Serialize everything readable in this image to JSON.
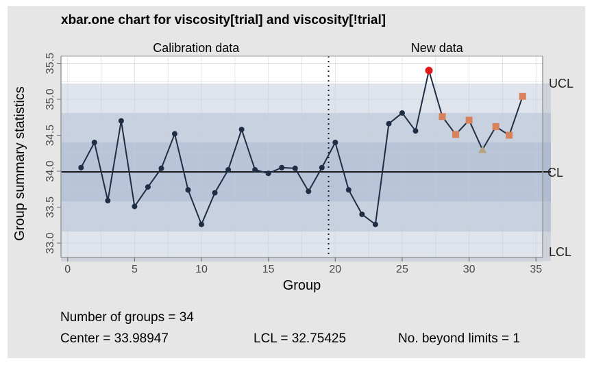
{
  "chart_data": {
    "type": "line",
    "title": "xbar.one chart for viscosity[trial] and viscosity[!trial]",
    "xlabel": "Group",
    "ylabel": "Group summary statistics",
    "section_labels": [
      "Calibration data",
      "New data"
    ],
    "xlim": [
      -0.5,
      35.5
    ],
    "ylim": [
      32.8,
      35.6
    ],
    "x_ticks": [
      0,
      5,
      10,
      15,
      20,
      25,
      30,
      35
    ],
    "y_ticks": [
      33.0,
      33.5,
      34.0,
      34.5,
      35.0,
      35.5
    ],
    "grid": true,
    "separator_x": 19.5,
    "center": 33.99,
    "ucl": 35.22,
    "lcl": 32.75,
    "bands": [
      {
        "lower": 32.75,
        "upper": 35.22
      },
      {
        "lower": 33.16,
        "upper": 34.81
      },
      {
        "lower": 33.58,
        "upper": 34.4
      }
    ],
    "limit_labels": {
      "ucl": "UCL",
      "cl": "CL",
      "lcl": "LCL"
    },
    "series": [
      {
        "x": [
          1,
          2,
          3,
          4,
          5,
          6,
          7,
          8,
          9,
          10,
          11,
          12,
          13,
          14,
          15,
          16,
          17,
          18,
          19,
          20,
          21,
          22,
          23,
          24,
          25,
          26,
          27,
          28,
          29,
          30,
          31,
          32,
          33,
          34
        ],
        "values": [
          34.05,
          34.4,
          33.59,
          34.7,
          33.51,
          33.78,
          34.04,
          34.52,
          33.74,
          33.26,
          33.7,
          34.02,
          34.58,
          34.02,
          33.97,
          34.05,
          34.04,
          33.72,
          34.05,
          34.4,
          33.74,
          33.4,
          33.26,
          34.66,
          34.81,
          34.56,
          35.4,
          34.76,
          34.51,
          34.71,
          34.3,
          34.62,
          34.5,
          35.04
        ],
        "markers": [
          "circle",
          "circle",
          "circle",
          "circle",
          "circle",
          "circle",
          "circle",
          "circle",
          "circle",
          "circle",
          "circle",
          "circle",
          "circle",
          "circle",
          "circle",
          "circle",
          "circle",
          "circle",
          "circle",
          "circle",
          "circle",
          "circle",
          "circle",
          "circle",
          "circle",
          "circle",
          "circle-beyond",
          "square-run",
          "square-run",
          "square-run",
          "triangle-run",
          "square-run",
          "square-run",
          "square-run"
        ]
      }
    ],
    "colors": {
      "line": "#1f2d44",
      "point": "#1f2d44",
      "beyond": "#e31a1c",
      "run": "#d8825c",
      "trend": "#b7a17e",
      "band": "#94a6c4",
      "panel": "#ffffff",
      "frame": "#e6e6e6"
    }
  },
  "stats": {
    "groups": "Number of groups = 34",
    "center": "Center = 33.98947",
    "lcl": "LCL = 32.75425",
    "beyond": "No. beyond limits = 1"
  }
}
